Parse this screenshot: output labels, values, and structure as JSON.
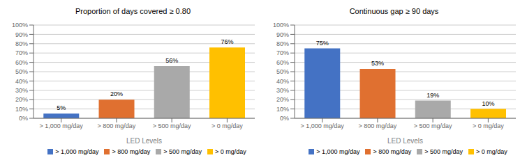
{
  "chart_data": [
    {
      "type": "bar",
      "title": "Proportion of days covered ≥ 0.80",
      "categories": [
        "> 1,000 mg/day",
        "> 800 mg/day",
        "> 500 mg/day",
        "> 0 mg/day"
      ],
      "values": [
        5,
        20,
        56,
        76
      ],
      "value_labels": [
        "5%",
        "20%",
        "56%",
        "76%"
      ],
      "colors": [
        "#4472C4",
        "#E07030",
        "#A9A9A9",
        "#FFC000"
      ],
      "xlabel": "LED Levels",
      "ylim": [
        0,
        100
      ],
      "yticks": [
        {
          "value": 0,
          "label": "0%"
        },
        {
          "value": 10,
          "label": "10%"
        },
        {
          "value": 20,
          "label": "20%"
        },
        {
          "value": 30,
          "label": "30%"
        },
        {
          "value": 40,
          "label": "40%"
        },
        {
          "value": 50,
          "label": "50%"
        },
        {
          "value": 60,
          "label": "60%"
        },
        {
          "value": 70,
          "label": "70%"
        },
        {
          "value": 80,
          "label": "80%"
        },
        {
          "value": 90,
          "label": "90%"
        },
        {
          "value": 100,
          "label": "100%"
        }
      ],
      "grid": true,
      "data_labels": true,
      "legend": "bottom"
    },
    {
      "type": "bar",
      "title": "Continuous gap ≥ 90 days",
      "categories": [
        "> 1,000 mg/day",
        "> 800 mg/day",
        "> 500 mg/day",
        "> 0 mg/day"
      ],
      "values": [
        75,
        53,
        19,
        10
      ],
      "value_labels": [
        "75%",
        "53%",
        "19%",
        "10%"
      ],
      "colors": [
        "#4472C4",
        "#E07030",
        "#A9A9A9",
        "#FFC000"
      ],
      "xlabel": "LED Levels",
      "ylim": [
        0,
        100
      ],
      "yticks": [
        {
          "value": 0,
          "label": "0%"
        },
        {
          "value": 10,
          "label": "10%"
        },
        {
          "value": 20,
          "label": "20%"
        },
        {
          "value": 30,
          "label": "30%"
        },
        {
          "value": 40,
          "label": "40%"
        },
        {
          "value": 50,
          "label": "50%"
        },
        {
          "value": 60,
          "label": "60%"
        },
        {
          "value": 70,
          "label": "70%"
        },
        {
          "value": 80,
          "label": "80%"
        },
        {
          "value": 90,
          "label": "90%"
        },
        {
          "value": 100,
          "label": "100%"
        }
      ],
      "grid": true,
      "data_labels": true,
      "legend": "bottom"
    }
  ]
}
